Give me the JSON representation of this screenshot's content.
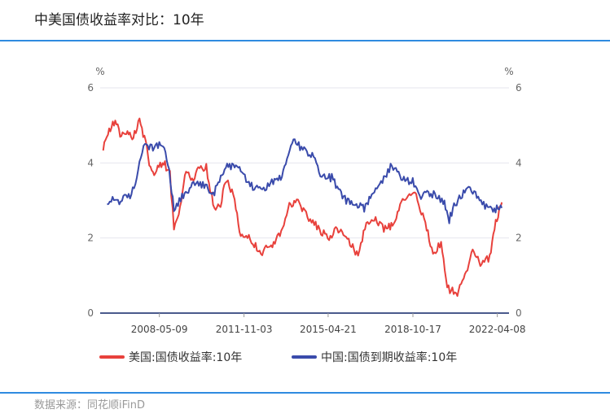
{
  "header": {
    "title": "中美国债收益率对比：10年"
  },
  "footer": {
    "source": "数据来源：同花顺iFinD"
  },
  "chart_data": {
    "type": "line",
    "title": "中美国债收益率对比：10年",
    "y_unit_left": "%",
    "y_unit_right": "%",
    "ylim": [
      0,
      6
    ],
    "yticks": [
      0,
      2,
      4,
      6
    ],
    "xlim": [
      "2005-12-01",
      "2022-10-01"
    ],
    "xticks": [
      "2008-05-09",
      "2011-11-03",
      "2015-04-21",
      "2018-10-17",
      "2022-04-08"
    ],
    "grid": true,
    "legend_position": "bottom",
    "series": [
      {
        "name": "美国:国债收益率:10年",
        "color": "#e8413c",
        "x": [
          "2006-01",
          "2006-04",
          "2006-07",
          "2006-10",
          "2007-01",
          "2007-04",
          "2007-07",
          "2007-10",
          "2008-01",
          "2008-04",
          "2008-07",
          "2008-10",
          "2008-12",
          "2009-03",
          "2009-06",
          "2009-09",
          "2009-12",
          "2010-04",
          "2010-08",
          "2010-11",
          "2011-02",
          "2011-06",
          "2011-09",
          "2012-01",
          "2012-07",
          "2012-12",
          "2013-05",
          "2013-09",
          "2013-12",
          "2014-06",
          "2014-12",
          "2015-04",
          "2015-08",
          "2016-01",
          "2016-07",
          "2016-11",
          "2017-03",
          "2017-09",
          "2017-12",
          "2018-05",
          "2018-11",
          "2019-03",
          "2019-08",
          "2019-12",
          "2020-03",
          "2020-05",
          "2020-08",
          "2021-01",
          "2021-03",
          "2021-08",
          "2021-12",
          "2022-03",
          "2022-06"
        ],
        "values": [
          4.4,
          4.9,
          5.1,
          4.7,
          4.8,
          4.7,
          5.1,
          4.5,
          3.7,
          3.9,
          4.0,
          3.7,
          2.2,
          2.8,
          3.8,
          3.5,
          3.8,
          3.9,
          2.7,
          2.9,
          3.6,
          3.0,
          2.0,
          2.0,
          1.6,
          1.8,
          2.1,
          2.9,
          3.0,
          2.6,
          2.2,
          2.0,
          2.2,
          2.1,
          1.5,
          2.4,
          2.5,
          2.2,
          2.4,
          3.0,
          3.2,
          2.6,
          1.6,
          1.9,
          0.7,
          0.6,
          0.55,
          1.1,
          1.7,
          1.25,
          1.5,
          2.4,
          2.95
        ]
      },
      {
        "name": "中国:国债到期收益率:10年",
        "color": "#3a4bab",
        "x": [
          "2006-03",
          "2006-09",
          "2007-03",
          "2007-09",
          "2008-01",
          "2008-06",
          "2008-09",
          "2008-12",
          "2009-04",
          "2009-09",
          "2010-03",
          "2010-08",
          "2011-01",
          "2011-06",
          "2011-09",
          "2012-01",
          "2012-07",
          "2013-01",
          "2013-06",
          "2013-11",
          "2014-03",
          "2014-09",
          "2015-01",
          "2015-06",
          "2015-10",
          "2016-03",
          "2016-10",
          "2017-03",
          "2017-09",
          "2017-11",
          "2018-05",
          "2018-10",
          "2019-02",
          "2019-07",
          "2020-01",
          "2020-04",
          "2020-07",
          "2020-11",
          "2021-03",
          "2021-09",
          "2022-01",
          "2022-06"
        ],
        "values": [
          3.0,
          3.0,
          3.1,
          4.4,
          4.4,
          4.5,
          4.0,
          2.8,
          3.1,
          3.4,
          3.4,
          3.2,
          3.9,
          3.9,
          3.8,
          3.4,
          3.3,
          3.5,
          3.7,
          4.6,
          4.4,
          4.2,
          3.6,
          3.6,
          3.2,
          2.9,
          2.8,
          3.3,
          3.7,
          3.9,
          3.6,
          3.5,
          3.1,
          3.2,
          3.0,
          2.5,
          2.9,
          3.2,
          3.3,
          2.9,
          2.75,
          2.8
        ]
      }
    ]
  }
}
